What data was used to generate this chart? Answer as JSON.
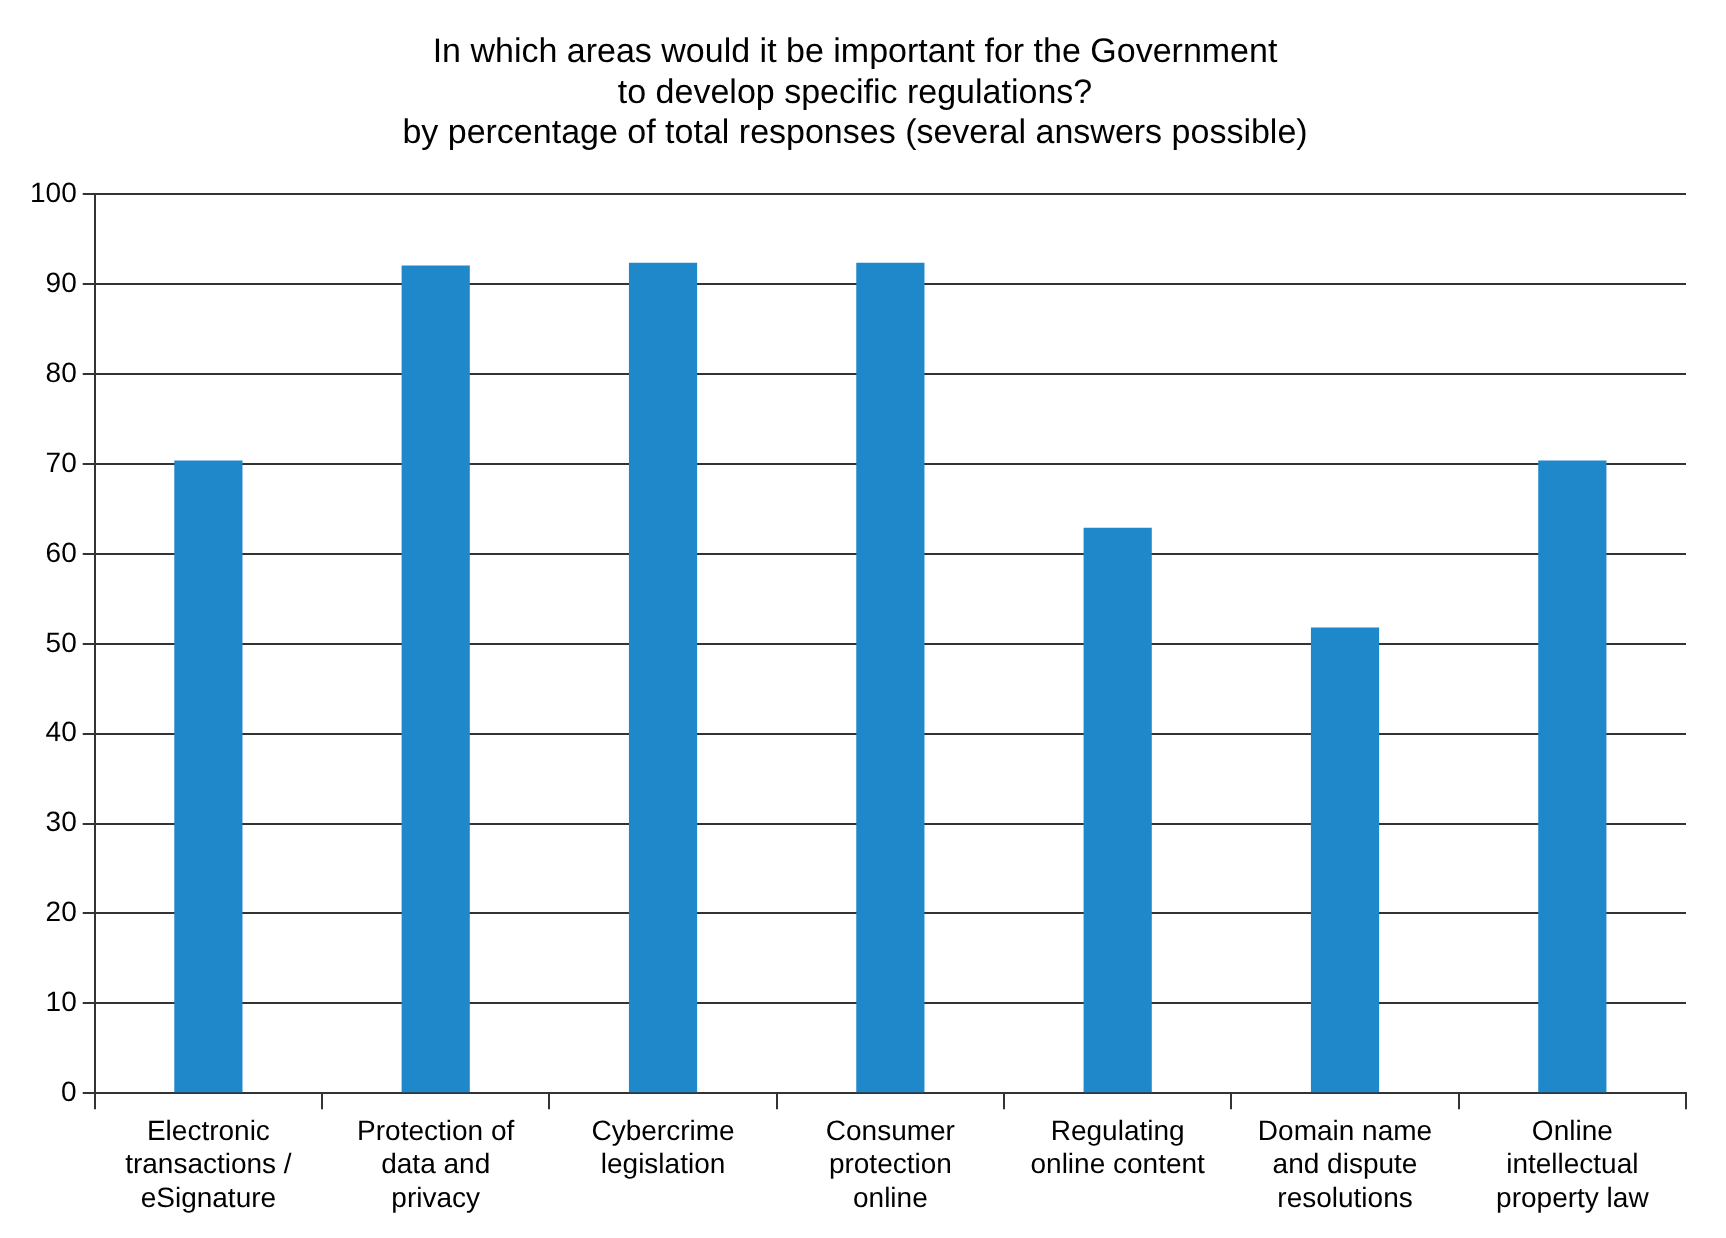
{
  "chart_data": {
    "type": "bar",
    "title": "In which areas would it be important for the Government to develop specific regulations?",
    "subtitle": "by percentage of total responses (several answers possible)",
    "categories": [
      "Electronic transactions / eSignature",
      "Protection of data and privacy",
      "Cybercrime legislation",
      "Consumer protection online",
      "Regulating online content",
      "Domain name and dispute resolutions",
      "Online intellectual property law"
    ],
    "values": [
      70.4,
      92.1,
      92.4,
      92.4,
      62.9,
      51.8,
      70.4
    ],
    "color": "#1f88cb",
    "ylim": [
      0,
      100
    ],
    "yticks": [
      0,
      10,
      20,
      30,
      40,
      50,
      60,
      70,
      80,
      90,
      100
    ],
    "grid": "y",
    "legend": false
  }
}
